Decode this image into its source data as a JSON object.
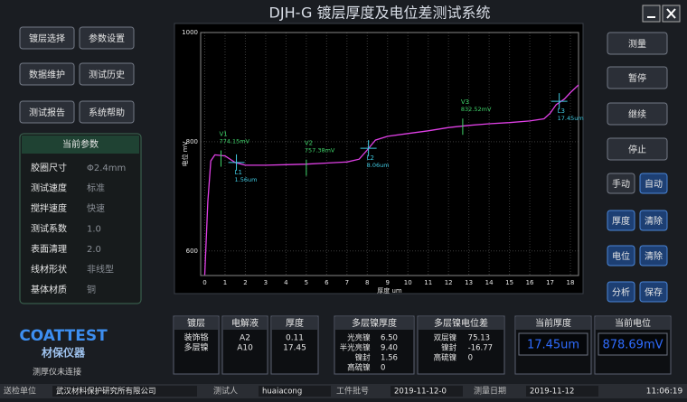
{
  "title": "DJH-G 镀层厚度及电位差测试系统",
  "menu": [
    "镀层选择",
    "参数设置",
    "数据维护",
    "测试历史",
    "测试报告",
    "系统帮助"
  ],
  "params": {
    "title": "当前参数",
    "rows": [
      [
        "胶圈尺寸",
        "Φ2.4mm"
      ],
      [
        "测试速度",
        "标准"
      ],
      [
        "搅拌速度",
        "快速"
      ],
      [
        "测试系数",
        "1.0"
      ],
      [
        "表面清理",
        "2.0"
      ],
      [
        "线材形状",
        "非线型"
      ],
      [
        "基体材质",
        "铜"
      ]
    ]
  },
  "plot": {
    "type": "line",
    "x_label": "厚度 um",
    "y_label": "电位 mV",
    "xlim": [
      -0.2,
      18.4
    ],
    "ylim": [
      555,
      1000
    ],
    "xticks": [
      0,
      1,
      2,
      3,
      4,
      5,
      6,
      7,
      8,
      9,
      10,
      11,
      12,
      13,
      14,
      15,
      16,
      17,
      18
    ],
    "yticks": [
      600,
      800,
      1000
    ],
    "grid": true,
    "color": "#e040e6",
    "x": [
      0,
      0.15,
      0.3,
      0.5,
      1,
      1.5,
      2,
      3,
      4,
      5,
      6,
      7,
      7.6,
      8,
      8.4,
      9,
      10,
      11,
      12,
      13,
      14,
      15,
      16,
      16.7,
      17,
      17.3,
      17.7,
      18,
      18.4
    ],
    "values": [
      556,
      690,
      765,
      776,
      774,
      762,
      757,
      757,
      758,
      759,
      761,
      763,
      768,
      785,
      803,
      810,
      815,
      820,
      826,
      830,
      833,
      835,
      838,
      842,
      852,
      868,
      878,
      890,
      904
    ],
    "markers": [
      {
        "name": "V1",
        "label": "774.15mV",
        "x": 0.8,
        "y": 774.15,
        "color": "#3fd46a"
      },
      {
        "name": "L1",
        "label": "1.56um",
        "x": 1.56,
        "y": 762,
        "color": "#3fc8e0"
      },
      {
        "name": "V2",
        "label": "757.38mV",
        "x": 5,
        "y": 757.38,
        "color": "#3fd46a"
      },
      {
        "name": "L2",
        "label": "8.06um",
        "x": 8.06,
        "y": 788,
        "color": "#3fc8e0"
      },
      {
        "name": "V3",
        "label": "832.52mV",
        "x": 12.7,
        "y": 832.52,
        "color": "#3fd46a"
      },
      {
        "name": "L3",
        "label": "17.45um",
        "x": 17.45,
        "y": 874,
        "color": "#3fc8e0"
      }
    ]
  },
  "controls": [
    "测量",
    "暂停",
    "继续",
    "停止",
    "手动",
    "自动",
    "厚度",
    "清除",
    "电位",
    "清除",
    "分析",
    "保存"
  ],
  "logo": {
    "brand": "COATTEST",
    "name": "材保仪器",
    "status": "测厚仪未连接"
  },
  "panels": [
    {
      "title": "镀层",
      "rows": [
        [
          "装饰铬"
        ],
        [
          "多层镍"
        ]
      ]
    },
    {
      "title": "电解液",
      "rows": [
        [
          "A2"
        ],
        [
          "A10"
        ]
      ]
    },
    {
      "title": "厚度",
      "rows": [
        [
          "0.11"
        ],
        [
          "17.45"
        ]
      ]
    },
    {
      "title": "多层镍厚度",
      "rows": [
        [
          "光亮镍",
          "6.50"
        ],
        [
          "半光亮镍",
          "9.40"
        ],
        [
          "镍封",
          "1.56"
        ],
        [
          "高硫镍",
          "0"
        ]
      ]
    },
    {
      "title": "多层镍电位差",
      "rows": [
        [
          "双层镍",
          "75.13"
        ],
        [
          "镍封",
          "-16.77"
        ],
        [
          "高硫镍",
          "0"
        ]
      ]
    },
    {
      "title": "当前厚度",
      "rows": [
        [
          "17.45um"
        ]
      ]
    },
    {
      "title": "当前电位",
      "rows": [
        [
          "878.69mV"
        ]
      ]
    }
  ],
  "status": [
    [
      "送检单位",
      "武汉材料保护研究所有限公司"
    ],
    [
      "测试人",
      "huaiacong"
    ],
    [
      "工件批号",
      "2019-11-12-0"
    ],
    [
      "测量日期",
      "2019-11-12"
    ]
  ],
  "clock": "11:06:19"
}
